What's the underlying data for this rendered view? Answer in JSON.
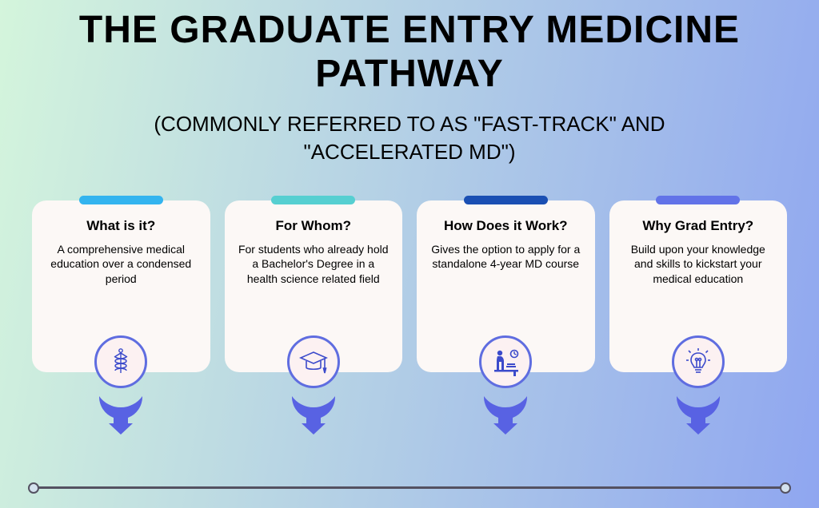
{
  "background": {
    "gradient_from": "#d4f5dc",
    "gradient_to": "#8fa6f0"
  },
  "title": {
    "text": "THE GRADUATE ENTRY MEDICINE PATHWAY",
    "fontsize": 48,
    "color": "#000000"
  },
  "subtitle": {
    "text": "(COMMONLY REFERRED TO AS \"FAST-TRACK\" AND \"ACCELERATED MD\")",
    "fontsize": 26,
    "color": "#000000"
  },
  "timeline": {
    "line_color": "#545161",
    "dot_border": "#545161",
    "dot_fill": "#d4e2ee"
  },
  "card_common": {
    "background": "#fcf8f6",
    "title_fontsize": 17,
    "text_fontsize": 14,
    "circle_bg": "#fcf1f2",
    "circle_border": "#5f6de0",
    "pointer_color": "#5862e3",
    "icon_color": "#3b4acb"
  },
  "cards": [
    {
      "tab_color": "#33b4ef",
      "title": "What is it?",
      "text": "A comprehensive medical education over a condensed period",
      "icon": "caduceus"
    },
    {
      "tab_color": "#56cfd1",
      "title": "For Whom?",
      "text": "For students who already hold a Bachelor's Degree in a health science related field",
      "icon": "graduation"
    },
    {
      "tab_color": "#1a4fb3",
      "title": "How Does it Work?",
      "text": "Gives the option to apply for a standalone 4-year MD course",
      "icon": "study"
    },
    {
      "tab_color": "#6273e8",
      "title": "Why Grad Entry?",
      "text": "Build upon your knowledge and skills to kickstart your medical education",
      "icon": "idea"
    }
  ]
}
